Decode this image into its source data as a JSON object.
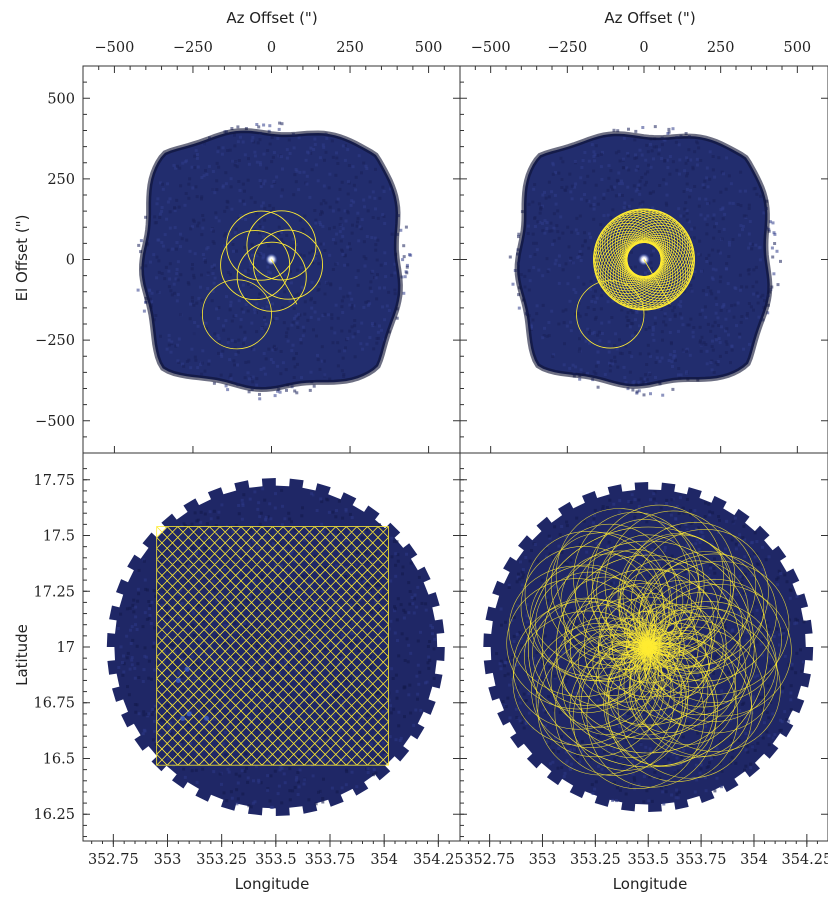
{
  "chart_data": [
    {
      "panel": "top-left",
      "type": "heatmap",
      "xlabel": "Az Offset (\")",
      "ylabel": "El Offset (\")",
      "xlim": [
        -600,
        600
      ],
      "ylim": [
        -600,
        600
      ],
      "x_ticks": [
        "−500",
        "−250",
        "0",
        "250",
        "500"
      ],
      "y_ticks": [
        "500",
        "250",
        "0",
        "−250",
        "−500"
      ],
      "x_tick_values": [
        -500,
        -250,
        0,
        250,
        500
      ],
      "y_tick_values": [
        500,
        250,
        0,
        -250,
        -500
      ],
      "map_color": "#222d6e",
      "track_color": "#ffec33",
      "scan_pattern": "daisy",
      "source_position": [
        0,
        0
      ],
      "scan": {
        "petal_center_radius": 55,
        "petal_radius": 110,
        "loops": 5,
        "tail_center": [
          -110,
          -170
        ],
        "tail_radius": 110
      }
    },
    {
      "panel": "top-right",
      "type": "heatmap",
      "xlabel": "Az Offset (\")",
      "ylabel": "",
      "xlim": [
        -600,
        600
      ],
      "ylim": [
        -600,
        600
      ],
      "x_ticks": [
        "−500",
        "−250",
        "0",
        "250",
        "500"
      ],
      "x_tick_values": [
        -500,
        -250,
        0,
        250,
        500
      ],
      "y_tick_values": [
        500,
        250,
        0,
        -250,
        -500
      ],
      "map_color": "#222d6e",
      "track_color": "#ffec33",
      "scan_pattern": "daisy",
      "source_position": [
        0,
        0
      ],
      "scan": {
        "petal_center_radius": 55,
        "petal_radius": 110,
        "loops": 40,
        "tail_center": [
          -110,
          -170
        ],
        "tail_radius": 110
      }
    },
    {
      "panel": "bottom-left",
      "type": "heatmap",
      "xlabel": "Longitude",
      "ylabel": "Latitude",
      "xlim": [
        352.61,
        354.35
      ],
      "ylim": [
        16.13,
        17.87
      ],
      "x_ticks": [
        "352.75",
        "353",
        "353.25",
        "353.5",
        "353.75",
        "354",
        "354.25"
      ],
      "y_ticks": [
        "17.75",
        "17.5",
        "17.25",
        "17",
        "16.75",
        "16.5",
        "16.25"
      ],
      "x_tick_values": [
        352.75,
        353,
        353.25,
        353.5,
        353.75,
        354,
        354.25
      ],
      "y_tick_values": [
        17.75,
        17.5,
        17.25,
        17,
        16.75,
        16.5,
        16.25
      ],
      "map_color": "#1f2766",
      "track_color": "#ffec33",
      "scan_pattern": "lissajous",
      "scan_box": {
        "x": [
          352.95,
          354.02
        ],
        "y": [
          16.47,
          17.54
        ]
      },
      "coverage_center": [
        353.5,
        17.0
      ],
      "coverage_radius": 0.78
    },
    {
      "panel": "bottom-right",
      "type": "heatmap",
      "xlabel": "Longitude",
      "ylabel": "",
      "xlim": [
        352.61,
        354.35
      ],
      "ylim": [
        16.13,
        17.87
      ],
      "x_ticks": [
        "352.75",
        "353",
        "353.25",
        "353.5",
        "353.75",
        "354",
        "354.25"
      ],
      "x_tick_values": [
        352.75,
        353,
        353.25,
        353.5,
        353.75,
        354,
        354.25
      ],
      "y_tick_values": [
        17.75,
        17.5,
        17.25,
        17,
        16.75,
        16.5,
        16.25
      ],
      "map_color": "#1f2766",
      "track_color": "#ffec33",
      "scan_pattern": "pong-rosette",
      "coverage_center": [
        353.5,
        17.0
      ],
      "coverage_radius": 0.78,
      "scan": {
        "outer_radius": 0.68,
        "inner_radius": 0.03
      }
    }
  ]
}
